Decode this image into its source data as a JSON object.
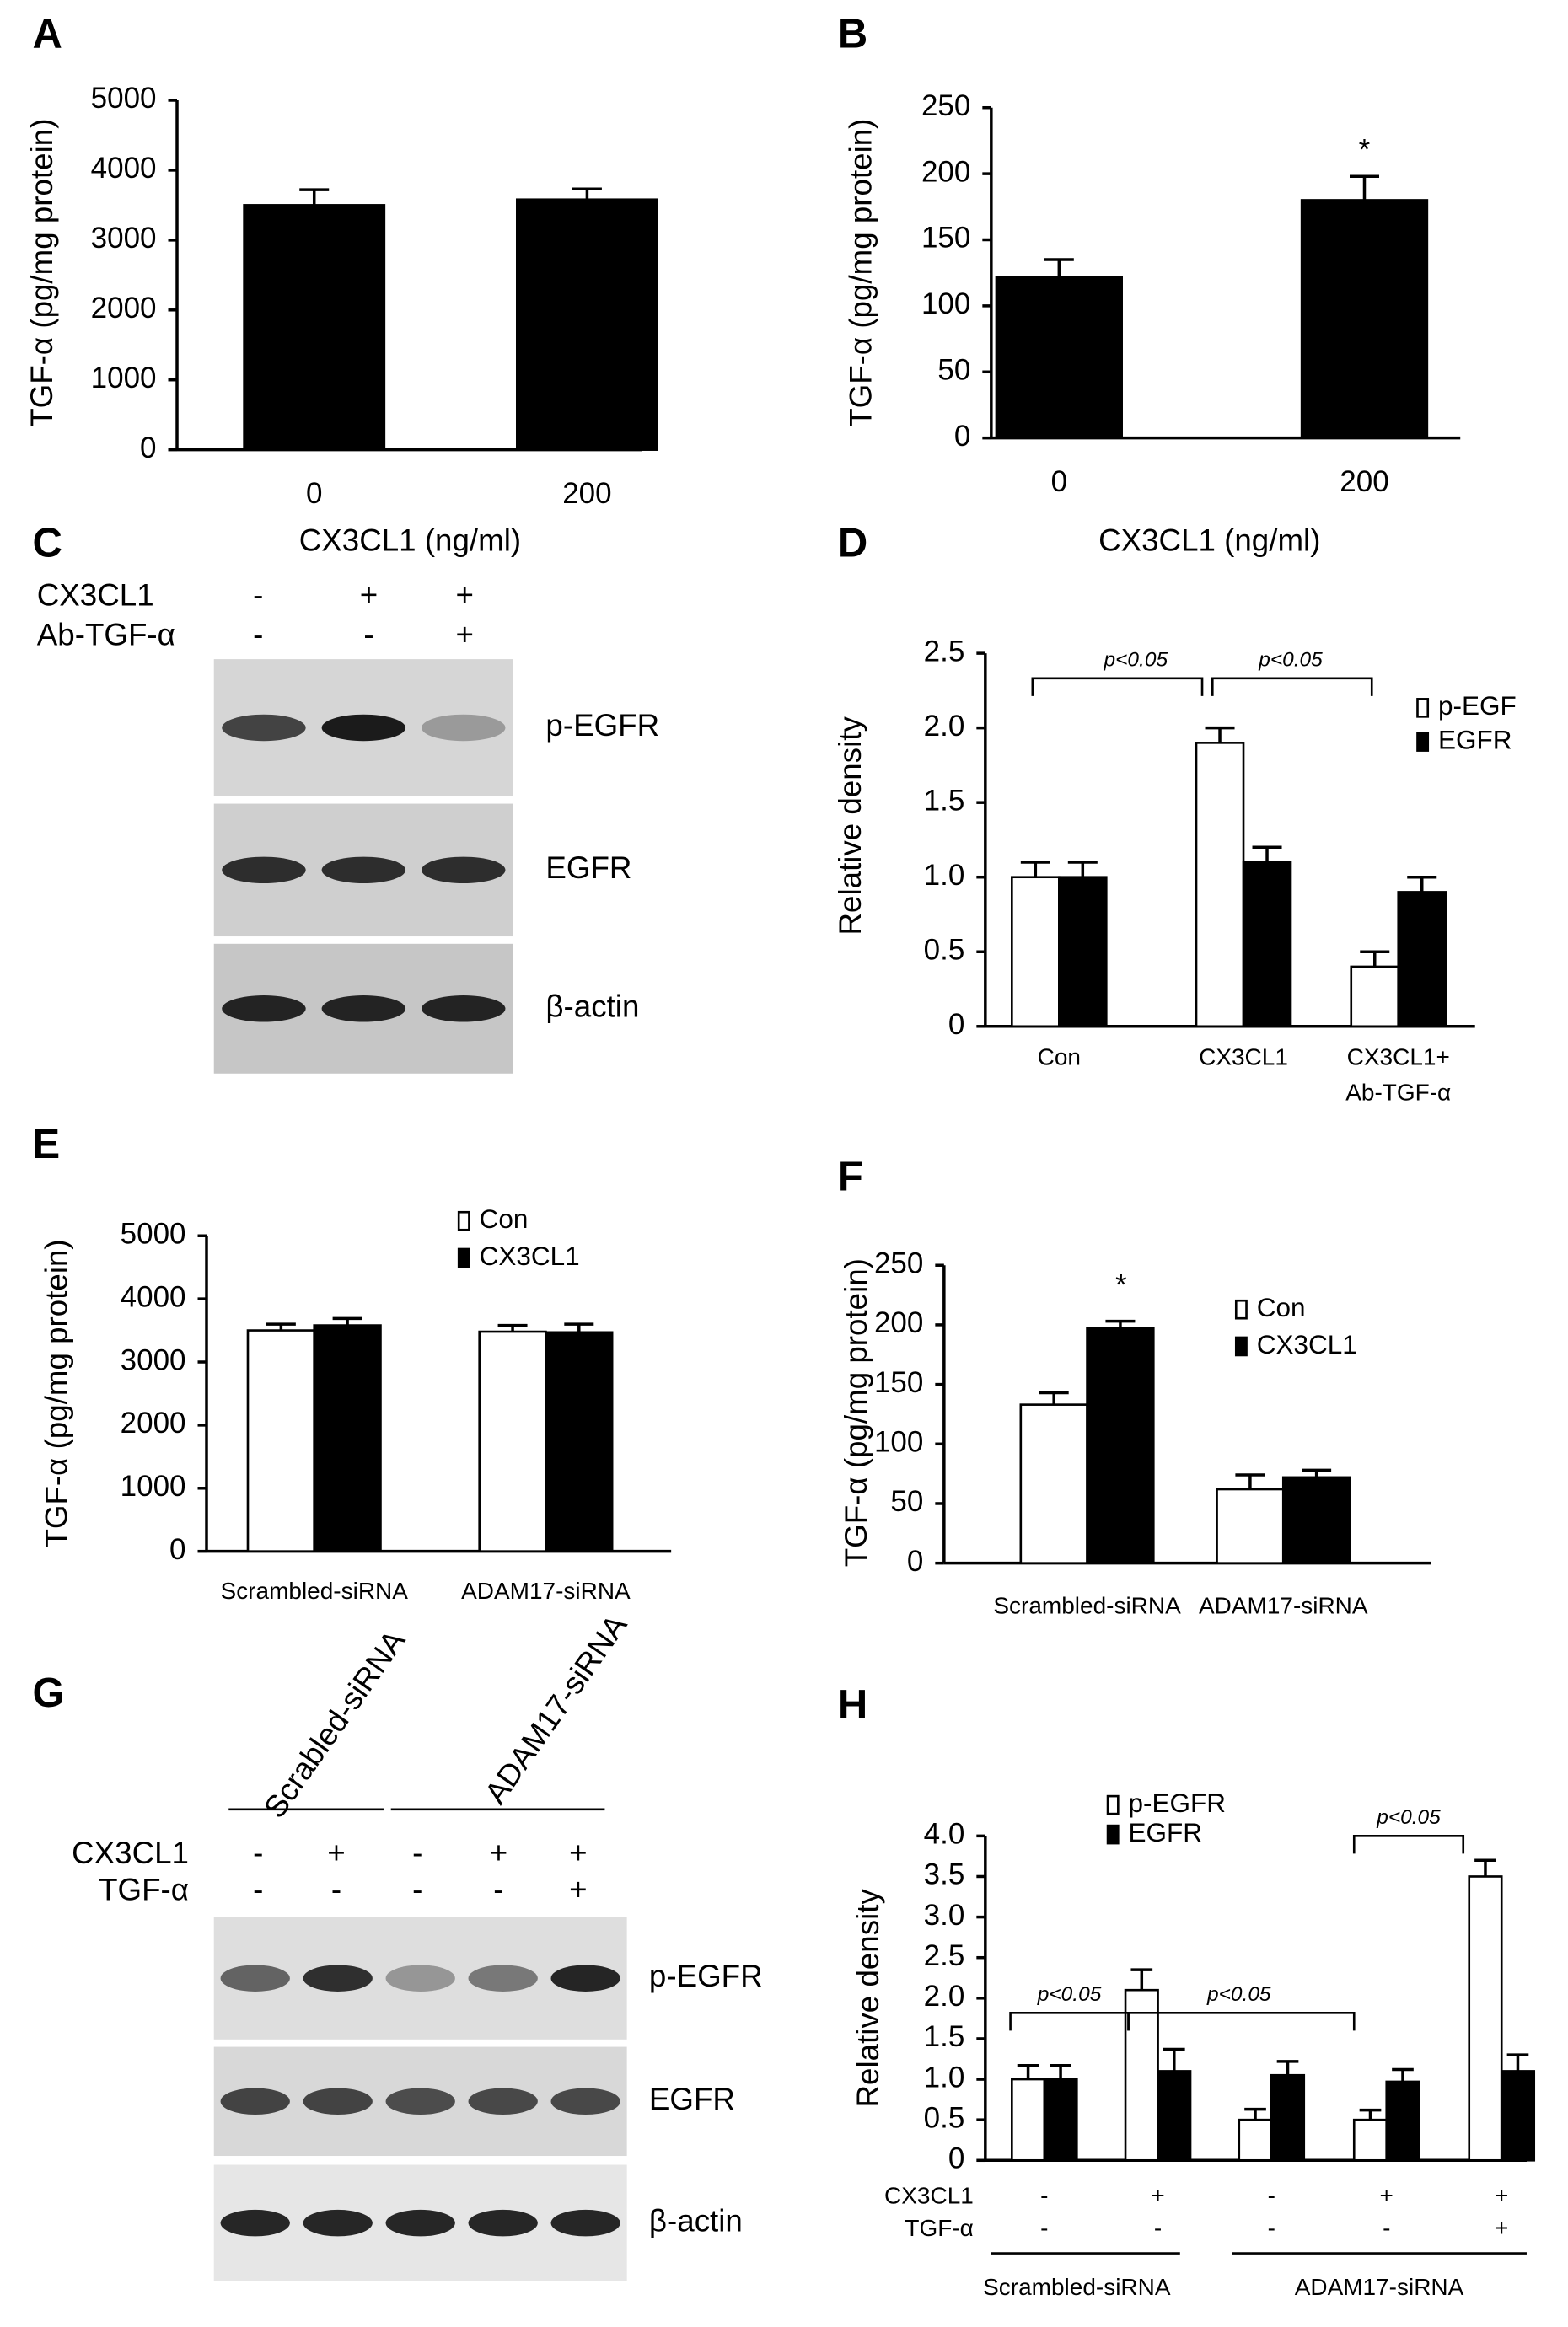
{
  "chart_data": [
    {
      "type": "bar",
      "panel": "A",
      "ylabel": "TGF-α (pg/mg protein)",
      "xlabel": "CX3CL1 (ng/ml)",
      "categories": [
        "0",
        "200"
      ],
      "series": [
        {
          "color": "#000000",
          "values": [
            3500,
            3580
          ],
          "errors": [
            220,
            150
          ]
        }
      ],
      "ylim": [
        0,
        5000
      ],
      "yticks": [
        0,
        1000,
        2000,
        3000,
        4000,
        5000
      ]
    },
    {
      "type": "bar",
      "panel": "B",
      "ylabel": "TGF-α (pg/mg protein)",
      "xlabel": "CX3CL1 (ng/ml)",
      "categories": [
        "0",
        "200"
      ],
      "series": [
        {
          "color": "#000000",
          "values": [
            122,
            180
          ],
          "errors": [
            13,
            18
          ]
        }
      ],
      "annotations": [
        "*"
      ],
      "ylim": [
        0,
        250
      ],
      "yticks": [
        0,
        50,
        100,
        150,
        200,
        250
      ]
    },
    {
      "type": "bar",
      "panel": "D",
      "ylabel": "Relative density",
      "categories": [
        "Con",
        "CX3CL1",
        "CX3CL1+ Ab-TGF-α"
      ],
      "series": [
        {
          "name": "p-EGF",
          "color": "#ffffff",
          "values": [
            1.0,
            1.9,
            0.4
          ],
          "errors": [
            0.1,
            0.1,
            0.1
          ]
        },
        {
          "name": "EGFR",
          "color": "#000000",
          "values": [
            1.0,
            1.1,
            0.9
          ],
          "errors": [
            0.1,
            0.1,
            0.1
          ]
        }
      ],
      "annotations": [
        "p<0.05",
        "p<0.05"
      ],
      "ylim": [
        0,
        2.5
      ],
      "yticks": [
        0,
        0.5,
        {
          "value": 1,
          "label": "1.0"
        },
        1.5,
        {
          "value": 2,
          "label": "2.0"
        },
        2.5
      ]
    },
    {
      "type": "bar",
      "panel": "E",
      "ylabel": "TGF-α (pg/mg protein)",
      "categories": [
        "Scrambled-siRNA",
        "ADAM17-siRNA"
      ],
      "series": [
        {
          "name": "Con",
          "color": "#ffffff",
          "values": [
            3500,
            3480
          ],
          "errors": [
            100,
            100
          ]
        },
        {
          "name": "CX3CL1",
          "color": "#000000",
          "values": [
            3580,
            3470
          ],
          "errors": [
            110,
            130
          ]
        }
      ],
      "ylim": [
        0,
        5000
      ],
      "yticks": [
        0,
        1000,
        2000,
        3000,
        4000,
        5000
      ]
    },
    {
      "type": "bar",
      "panel": "F",
      "ylabel": "TGF-α (pg/mg protein)",
      "categories": [
        "Scrambled-siRNA",
        "ADAM17-siRNA"
      ],
      "series": [
        {
          "name": "Con",
          "color": "#ffffff",
          "values": [
            133,
            62
          ],
          "errors": [
            10,
            12
          ]
        },
        {
          "name": "CX3CL1",
          "color": "#000000",
          "values": [
            197,
            72
          ],
          "errors": [
            6,
            6
          ]
        }
      ],
      "annotations": [
        "*"
      ],
      "ylim": [
        0,
        250
      ],
      "yticks": [
        0,
        50,
        100,
        150,
        200,
        250
      ]
    },
    {
      "type": "bar",
      "panel": "H",
      "ylabel": "Relative density",
      "categories": [
        null,
        null,
        null,
        null,
        null
      ],
      "series": [
        {
          "name": "p-EGFR",
          "color": "#ffffff",
          "values": [
            1.0,
            2.1,
            0.5,
            0.5,
            3.5
          ],
          "errors": [
            0.17,
            0.25,
            0.13,
            0.12,
            0.2
          ]
        },
        {
          "name": "EGFR",
          "color": "#000000",
          "values": [
            1.0,
            1.1,
            1.05,
            0.97,
            1.1
          ],
          "errors": [
            0.17,
            0.27,
            0.17,
            0.15,
            0.2
          ]
        }
      ],
      "annotations": [
        "p<0.05",
        "p<0.05",
        "p<0.05"
      ],
      "conditions": [
        {
          "label": "CX3CL1",
          "signs": [
            "-",
            "+",
            "-",
            "+",
            "+"
          ]
        },
        {
          "label": "TGF-α",
          "signs": [
            "-",
            "-",
            "-",
            "-",
            "+"
          ]
        }
      ],
      "groups": [
        "Scrambled-siRNA",
        "ADAM17-siRNA"
      ],
      "ylim": [
        0,
        4
      ],
      "yticks": [
        0,
        0.5,
        {
          "value": 1,
          "label": "1.0"
        },
        1.5,
        {
          "value": 2,
          "label": "2.0"
        },
        2.5,
        {
          "value": 3,
          "label": "3.0"
        },
        3.5,
        {
          "value": 4,
          "label": "4.0"
        }
      ]
    }
  ],
  "blots": [
    {
      "panel": "C",
      "conditions": [
        {
          "label": "CX3CL1",
          "signs": [
            "-",
            "+",
            "+"
          ]
        },
        {
          "label": "Ab-TGF-α",
          "signs": [
            "-",
            "-",
            "+"
          ]
        }
      ],
      "bands": [
        "p-EGFR",
        "EGFR",
        "β-actin"
      ]
    },
    {
      "panel": "G",
      "groups": [
        "Scrabled-siRNA",
        "ADAM17-siRNA"
      ],
      "conditions": [
        {
          "label": "CX3CL1",
          "signs": [
            "-",
            "+",
            "-",
            "+",
            "+"
          ]
        },
        {
          "label": "TGF-α",
          "signs": [
            "-",
            "-",
            "-",
            "-",
            "+"
          ]
        }
      ],
      "bands": [
        "p-EGFR",
        "EGFR",
        "β-actin"
      ]
    }
  ]
}
